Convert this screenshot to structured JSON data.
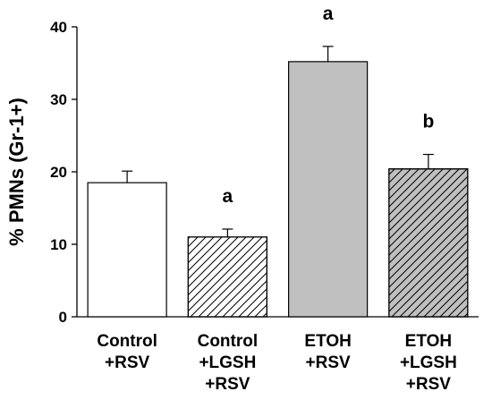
{
  "chart_data": {
    "type": "bar",
    "ylabel": "% PMNs (Gr-1+)",
    "xlabel": "",
    "ylim": [
      0,
      40
    ],
    "yticks": [
      0,
      10,
      20,
      30,
      40
    ],
    "grid": false,
    "categories": [
      [
        "Control",
        "+RSV"
      ],
      [
        "Control",
        "+LGSH",
        "+RSV"
      ],
      [
        "ETOH",
        "+RSV"
      ],
      [
        "ETOH",
        "+LGSH",
        "+RSV"
      ]
    ],
    "values": [
      18.5,
      11.0,
      35.2,
      20.4
    ],
    "error_plus": [
      1.6,
      1.1,
      2.1,
      2.0
    ],
    "annotations": [
      "",
      "a",
      "a",
      "b"
    ],
    "fill_colors": [
      "#ffffff",
      "#ffffff",
      "#c0c0c0",
      "#c0c0c0"
    ],
    "hatched": [
      false,
      true,
      false,
      true
    ]
  }
}
